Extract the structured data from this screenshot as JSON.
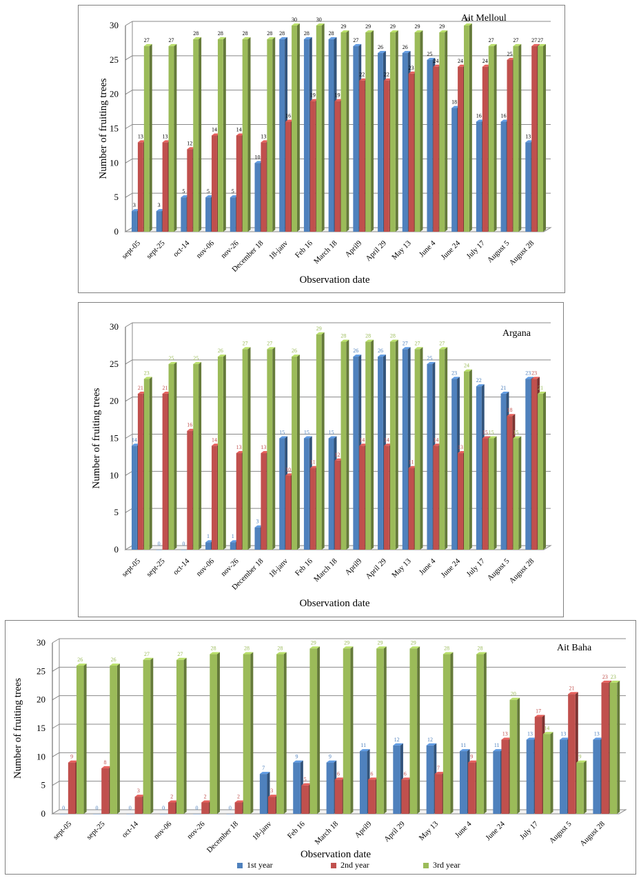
{
  "chart_data": [
    {
      "type": "bar",
      "title": "Ait Melloul",
      "xlabel": "Observation date",
      "ylabel": "Number of fruiting trees",
      "ylim": [
        0,
        30
      ],
      "yticks": [
        "0",
        "5",
        "10",
        "15",
        "20",
        "25",
        "30"
      ],
      "categories": [
        "sept-05",
        "sept-25",
        "oct-14",
        "nov-06",
        "nov-26",
        "December 18",
        "18-janv",
        "Feb 16",
        "March 18",
        "April9",
        "April 29",
        "May 13",
        "June 4",
        "June 24",
        "July 17",
        "August 5",
        "August 28"
      ],
      "label_colors": [
        "#000000",
        "#000000",
        "#000000"
      ],
      "series": [
        {
          "name": "1st year",
          "color": "#4f81bd",
          "values": [
            3,
            3,
            5,
            5,
            5,
            10,
            28,
            28,
            28,
            27,
            26,
            26,
            25,
            18,
            16,
            16,
            13
          ]
        },
        {
          "name": "2nd year",
          "color": "#c0504d",
          "values": [
            13,
            13,
            12,
            14,
            14,
            13,
            16,
            19,
            19,
            22,
            22,
            23,
            24,
            24,
            24,
            25,
            27
          ]
        },
        {
          "name": "3rd year",
          "color": "#9bbb59",
          "values": [
            27,
            27,
            28,
            28,
            28,
            28,
            30,
            30,
            29,
            29,
            29,
            29,
            29,
            30,
            27,
            27,
            27
          ]
        }
      ]
    },
    {
      "type": "bar",
      "title": "Argana",
      "xlabel": "Observation date",
      "ylabel": "Number of fruiting trees",
      "ylim": [
        0,
        30
      ],
      "yticks": [
        "0",
        "5",
        "10",
        "15",
        "20",
        "25",
        "30"
      ],
      "categories": [
        "sept-05",
        "sept-25",
        "oct-14",
        "nov-06",
        "nov-26",
        "December 18",
        "18-janv",
        "Feb 16",
        "March 18",
        "April9",
        "April 29",
        "May 13",
        "June 4",
        "June 24",
        "July 17",
        "August 5",
        "August 28"
      ],
      "label_colors": [
        "#4f81bd",
        "#c0504d",
        "#9bbb59"
      ],
      "series": [
        {
          "name": "1st year",
          "color": "#4f81bd",
          "values": [
            14,
            0,
            0,
            1,
            1,
            3,
            15,
            15,
            15,
            26,
            26,
            27,
            25,
            23,
            22,
            21,
            23
          ]
        },
        {
          "name": "2nd year",
          "color": "#c0504d",
          "values": [
            21,
            21,
            16,
            14,
            13,
            13,
            10,
            11,
            12,
            14,
            14,
            11,
            14,
            13,
            15,
            18,
            23
          ]
        },
        {
          "name": "3rd year",
          "color": "#9bbb59",
          "values": [
            23,
            25,
            25,
            26,
            27,
            27,
            26,
            29,
            28,
            28,
            28,
            27,
            27,
            24,
            15,
            15,
            21
          ]
        }
      ]
    },
    {
      "type": "bar",
      "title": "Ait Baha",
      "xlabel": "Observation date",
      "ylabel": "Number of fruiting trees",
      "ylim": [
        0,
        30
      ],
      "yticks": [
        "0",
        "5",
        "10",
        "15",
        "20",
        "25",
        "30"
      ],
      "categories": [
        "sept-05",
        "sept-25",
        "oct-14",
        "nov-06",
        "nov-26",
        "December 18",
        "18-janv",
        "Feb 16",
        "March 18",
        "April9",
        "April 29",
        "May 13",
        "June 4",
        "June 24",
        "July 17",
        "August 5",
        "August 28"
      ],
      "label_colors": [
        "#4f81bd",
        "#c0504d",
        "#9bbb59"
      ],
      "legend_position": "bottom",
      "series": [
        {
          "name": "1st year",
          "color": "#4f81bd",
          "values": [
            0,
            0,
            0,
            0,
            0,
            0,
            7,
            9,
            9,
            11,
            12,
            12,
            11,
            11,
            13,
            13,
            13
          ]
        },
        {
          "name": "2nd year",
          "color": "#c0504d",
          "values": [
            9,
            8,
            3,
            2,
            2,
            2,
            3,
            5,
            6,
            6,
            6,
            7,
            9,
            13,
            17,
            21,
            23
          ]
        },
        {
          "name": "3rd year",
          "color": "#9bbb59",
          "values": [
            26,
            26,
            27,
            27,
            28,
            28,
            28,
            29,
            29,
            29,
            29,
            28,
            28,
            20,
            14,
            9,
            23
          ]
        }
      ]
    }
  ]
}
